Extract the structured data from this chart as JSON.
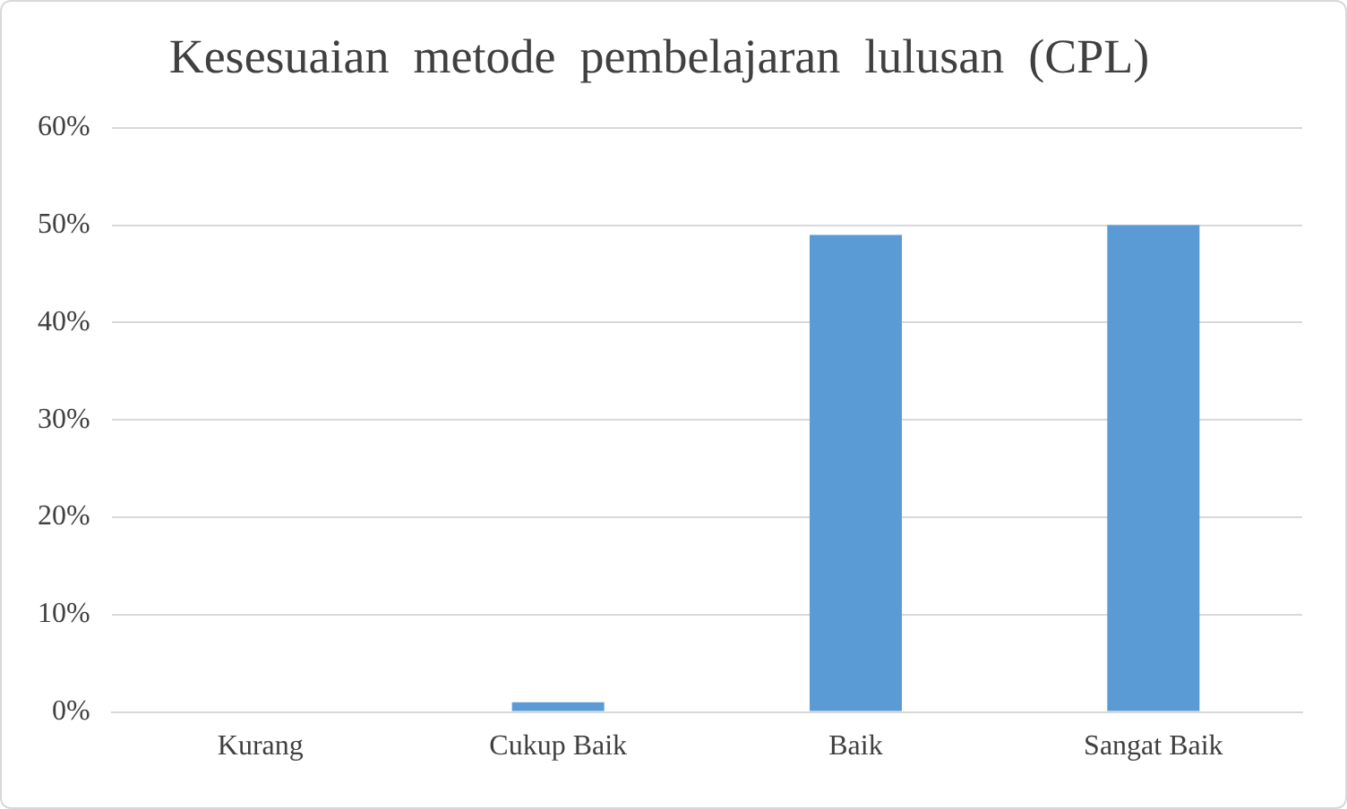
{
  "chart_data": {
    "type": "bar",
    "title": "Kesesuaian  metode  pembelajaran  lulusan  (CPL)",
    "categories": [
      "Kurang",
      "Cukup Baik",
      "Baik",
      "Sangat Baik"
    ],
    "values": [
      0,
      1,
      49,
      50
    ],
    "color": "#5b9bd5",
    "ylim": [
      0,
      60
    ],
    "yticks": [
      {
        "value": 0,
        "label": "0%"
      },
      {
        "value": 10,
        "label": "10%"
      },
      {
        "value": 20,
        "label": "20%"
      },
      {
        "value": 30,
        "label": "30%"
      },
      {
        "value": 40,
        "label": "40%"
      },
      {
        "value": 50,
        "label": "50%"
      },
      {
        "value": 60,
        "label": "60%"
      }
    ],
    "grid": "y",
    "legend": false
  }
}
